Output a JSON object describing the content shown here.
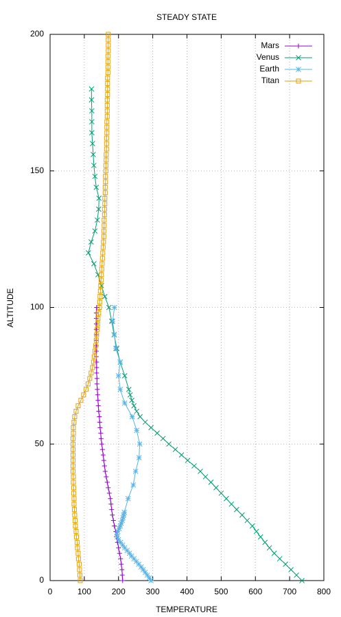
{
  "chart_data": {
    "type": "line",
    "title": "STEADY STATE",
    "x_label": "TEMPERATURE",
    "y_label": "ALTITUDE",
    "xlim": [
      0,
      800
    ],
    "xticks": [
      0,
      100,
      200,
      300,
      400,
      500,
      600,
      700,
      800
    ],
    "ylim": [
      0,
      200
    ],
    "yticks": [
      0,
      50,
      100,
      150,
      200
    ],
    "grid": true,
    "legend": "top-right",
    "series": [
      {
        "name": "Mars",
        "color": "#9400d3",
        "marker": "plus",
        "x": [
          212,
          211,
          210,
          208,
          206,
          203,
          200,
          197,
          194,
          192,
          188,
          185,
          182,
          180,
          178,
          176,
          173,
          170,
          167,
          164,
          161,
          159,
          157,
          155,
          153,
          151,
          149,
          148,
          146,
          145,
          144,
          142,
          141,
          140,
          139,
          138,
          137,
          137,
          136,
          136,
          136,
          135,
          135,
          135,
          135,
          135,
          135,
          135,
          135,
          135,
          136
        ],
        "values": [
          0,
          2,
          4,
          6,
          8,
          10,
          12,
          14,
          16,
          18,
          20,
          22,
          24,
          26,
          28,
          30,
          32,
          34,
          36,
          38,
          40,
          42,
          44,
          46,
          48,
          50,
          52,
          54,
          56,
          58,
          60,
          62,
          64,
          66,
          68,
          70,
          72,
          74,
          76,
          78,
          80,
          82,
          84,
          86,
          88,
          90,
          92,
          94,
          96,
          98,
          100
        ]
      },
      {
        "name": "Venus",
        "color": "#009e73",
        "marker": "cross",
        "x": [
          736,
          720,
          704,
          688,
          671,
          655,
          641,
          628,
          615,
          603,
          591,
          576,
          561,
          545,
          530,
          515,
          500,
          485,
          470,
          454,
          439,
          421,
          402,
          384,
          366,
          347,
          330,
          313,
          295,
          278,
          263,
          253,
          245,
          239,
          234,
          230,
          218,
          205,
          195,
          187,
          180,
          172,
          160,
          150,
          140,
          128,
          112,
          120,
          131,
          138,
          142,
          143,
          135,
          131,
          128,
          126,
          124,
          122,
          122,
          122,
          121,
          121
        ],
        "values": [
          0,
          2,
          4,
          6,
          8,
          10,
          12,
          14,
          16,
          18,
          20,
          22,
          24,
          26,
          28,
          30,
          32,
          34,
          36,
          38,
          40,
          42,
          44,
          46,
          48,
          50,
          52,
          54,
          56,
          58,
          60,
          62,
          64,
          66,
          68,
          70,
          75,
          80,
          85,
          90,
          95,
          100,
          104,
          108,
          112,
          116,
          120,
          124,
          128,
          132,
          136,
          140,
          144,
          148,
          152,
          156,
          160,
          164,
          168,
          172,
          176,
          180
        ]
      },
      {
        "name": "Earth",
        "color": "#56b4e9",
        "marker": "star",
        "x": [
          295,
          290,
          284,
          278,
          272,
          266,
          259,
          252,
          245,
          238,
          232,
          225,
          218,
          212,
          206,
          200,
          196,
          195,
          198,
          202,
          205,
          208,
          211,
          213,
          215,
          217,
          228,
          243,
          250,
          260,
          262,
          253,
          240,
          218,
          205,
          200,
          205,
          192,
          188,
          183,
          188
        ],
        "values": [
          0,
          1,
          2,
          3,
          4,
          5,
          6,
          7,
          8,
          9,
          10,
          11,
          12,
          13,
          14,
          15,
          16,
          17,
          18,
          19,
          20,
          21,
          22,
          23,
          24,
          25,
          30,
          35,
          40,
          45,
          50,
          55,
          60,
          65,
          70,
          75,
          80,
          85,
          90,
          95,
          100
        ]
      },
      {
        "name": "Titan",
        "color": "#e69f00",
        "marker": "square",
        "x": [
          88,
          87,
          86,
          85,
          83,
          82,
          80,
          79,
          77,
          76,
          74,
          73,
          72,
          71,
          70,
          70,
          69,
          69,
          68,
          68,
          67,
          67,
          67,
          67,
          67,
          67,
          67,
          68,
          68,
          70,
          72,
          76,
          82,
          90,
          98,
          105,
          111,
          116,
          120,
          124,
          127,
          129,
          131,
          133,
          135,
          136,
          138,
          139,
          140,
          142,
          144,
          145,
          146,
          147,
          148,
          149,
          150,
          151,
          152,
          153,
          154,
          155,
          156,
          157,
          157,
          158,
          158,
          159,
          159,
          160,
          160,
          161,
          161,
          162,
          162,
          163,
          163,
          164,
          164,
          165,
          165,
          165,
          166,
          166,
          166,
          167,
          167,
          167,
          167,
          168,
          168,
          168,
          168,
          169,
          169,
          169,
          169,
          170,
          170,
          170,
          170
        ],
        "values": [
          0,
          2,
          4,
          6,
          8,
          10,
          12,
          14,
          16,
          18,
          20,
          22,
          24,
          26,
          28,
          30,
          32,
          34,
          36,
          38,
          40,
          42,
          44,
          46,
          48,
          50,
          52,
          54,
          56,
          58,
          60,
          62,
          64,
          66,
          68,
          70,
          72,
          74,
          76,
          78,
          80,
          82,
          84,
          86,
          88,
          90,
          92,
          94,
          96,
          98,
          100,
          102,
          104,
          106,
          108,
          110,
          112,
          114,
          116,
          118,
          120,
          122,
          124,
          126,
          128,
          130,
          132,
          134,
          136,
          138,
          140,
          142,
          144,
          146,
          148,
          150,
          152,
          154,
          156,
          158,
          160,
          162,
          164,
          166,
          168,
          170,
          172,
          174,
          176,
          178,
          180,
          182,
          184,
          186,
          188,
          190,
          192,
          194,
          196,
          198,
          200
        ]
      }
    ]
  }
}
